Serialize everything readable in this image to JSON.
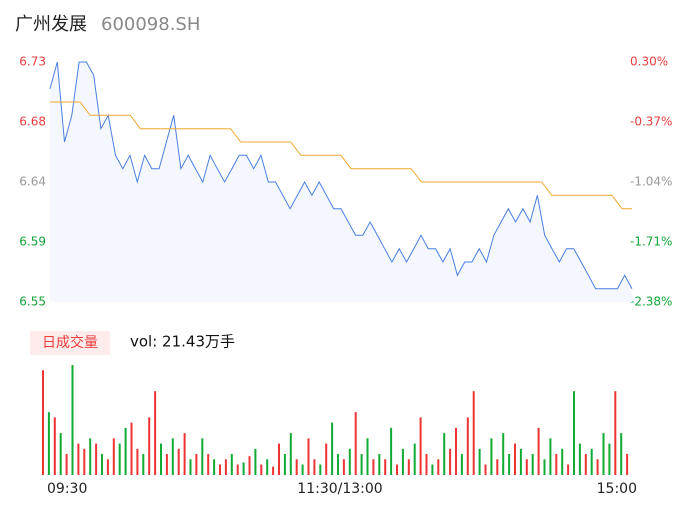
{
  "chart_data": [
    {
      "type": "line",
      "title": "广州发展",
      "subtitle": "600098.SH",
      "x_labels": [
        "09:30",
        "11:30/13:00",
        "15:00"
      ],
      "series": [
        {
          "color": "#4a7fe0",
          "values": [
            6.71,
            6.73,
            6.67,
            6.69,
            6.73,
            6.73,
            6.72,
            6.68,
            6.69,
            6.66,
            6.65,
            6.66,
            6.64,
            6.66,
            6.65,
            6.65,
            6.67,
            6.69,
            6.65,
            6.66,
            6.65,
            6.64,
            6.66,
            6.65,
            6.64,
            6.65,
            6.66,
            6.66,
            6.65,
            6.66,
            6.64,
            6.64,
            6.63,
            6.62,
            6.63,
            6.64,
            6.63,
            6.64,
            6.63,
            6.62,
            6.62,
            6.61,
            6.6,
            6.6,
            6.61,
            6.6,
            6.59,
            6.58,
            6.59,
            6.58,
            6.59,
            6.6,
            6.59,
            6.59,
            6.58,
            6.59,
            6.57,
            6.58,
            6.58,
            6.59,
            6.58,
            6.6,
            6.61,
            6.62,
            6.61,
            6.62,
            6.61,
            6.63,
            6.6,
            6.59,
            6.58,
            6.59,
            6.59,
            6.58,
            6.57,
            6.56,
            6.56,
            6.56,
            6.56,
            6.57,
            6.56
          ]
        },
        {
          "color": "#f0a830",
          "values": [
            6.7,
            6.7,
            6.7,
            6.7,
            6.69,
            6.69,
            6.69,
            6.69,
            6.69,
            6.68,
            6.68,
            6.68,
            6.68,
            6.68,
            6.68,
            6.68,
            6.68,
            6.68,
            6.68,
            6.67,
            6.67,
            6.67,
            6.67,
            6.67,
            6.67,
            6.66,
            6.66,
            6.66,
            6.66,
            6.66,
            6.65,
            6.65,
            6.65,
            6.65,
            6.65,
            6.65,
            6.65,
            6.64,
            6.64,
            6.64,
            6.64,
            6.64,
            6.64,
            6.64,
            6.64,
            6.64,
            6.64,
            6.64,
            6.64,
            6.64,
            6.63,
            6.63,
            6.63,
            6.63,
            6.63,
            6.63,
            6.63,
            6.62,
            6.62
          ]
        }
      ],
      "ylim": [
        6.55,
        6.73
      ],
      "yticks": [
        6.55,
        {
          "value": 6.595,
          "label": "6.59"
        },
        6.64,
        {
          "value": 6.685,
          "label": "6.68"
        },
        6.73
      ],
      "y2lim": [
        -2.38,
        0.3
      ],
      "y2ticks": [
        {
          "value": -2.38,
          "label": "-2.38%"
        },
        {
          "value": -1.71,
          "label": "-1.71%"
        },
        {
          "value": -1.04,
          "label": "-1.04%"
        },
        {
          "value": -0.37,
          "label": "-0.37%"
        },
        {
          "value": 0.3,
          "label": "0.30%"
        }
      ],
      "ytick_colors": [
        "#13a538",
        "#13a538",
        "#999999",
        "#e83e3e",
        "#e83e3e"
      ]
    },
    {
      "type": "bar",
      "title": "日成交量",
      "subtitle": "vol: 21.43万手",
      "values": [
        100,
        60,
        55,
        40,
        20,
        105,
        30,
        25,
        35,
        30,
        20,
        15,
        35,
        30,
        45,
        50,
        25,
        20,
        55,
        80,
        30,
        20,
        35,
        25,
        40,
        15,
        20,
        35,
        20,
        15,
        10,
        15,
        20,
        10,
        12,
        18,
        25,
        10,
        15,
        8,
        30,
        20,
        40,
        15,
        10,
        35,
        15,
        10,
        30,
        50,
        20,
        15,
        25,
        60,
        20,
        35,
        15,
        20,
        15,
        45,
        10,
        25,
        15,
        30,
        55,
        20,
        10,
        15,
        40,
        25,
        45,
        20,
        55,
        80,
        25,
        10,
        35,
        15,
        40,
        20,
        30,
        25,
        15,
        20,
        45,
        15,
        35,
        20,
        25,
        10,
        80,
        30,
        20,
        25,
        15,
        40,
        30,
        80,
        40,
        20
      ],
      "colors": [
        "#e33",
        "#1a3",
        "#e33",
        "#1a3",
        "#e33",
        "#1a3",
        "#e33",
        "#e33",
        "#1a3",
        "#e33",
        "#1a3",
        "#e33",
        "#e33",
        "#1a3",
        "#1a3",
        "#e33",
        "#e33",
        "#1a3",
        "#e33",
        "#e33",
        "#1a3",
        "#e33",
        "#1a3",
        "#e33",
        "#e33",
        "#1a3",
        "#e33",
        "#1a3",
        "#e33",
        "#1a3",
        "#e33",
        "#e33",
        "#1a3",
        "#e33",
        "#1a3",
        "#e33",
        "#1a3",
        "#e33",
        "#1a3",
        "#e33",
        "#e33",
        "#1a3",
        "#1a3",
        "#e33",
        "#1a3",
        "#e33",
        "#e33",
        "#1a3",
        "#e33",
        "#1a3",
        "#1a3",
        "#e33",
        "#1a3",
        "#e33",
        "#1a3",
        "#1a3",
        "#e33",
        "#1a3",
        "#e33",
        "#1a3",
        "#e33",
        "#1a3",
        "#e33",
        "#1a3",
        "#e33",
        "#e33",
        "#1a3",
        "#e33",
        "#1a3",
        "#e33",
        "#e33",
        "#1a3",
        "#e33",
        "#e33",
        "#1a3",
        "#e33",
        "#1a3",
        "#e33",
        "#1a3",
        "#1a3",
        "#e33",
        "#1a3",
        "#e33",
        "#1a3",
        "#e33",
        "#1a3",
        "#1a3",
        "#e33",
        "#1a3",
        "#e33",
        "#1a3",
        "#1a3",
        "#e33",
        "#1a3",
        "#e33",
        "#1a3",
        "#1a3",
        "#e33",
        "#1a3",
        "#e33"
      ]
    }
  ]
}
